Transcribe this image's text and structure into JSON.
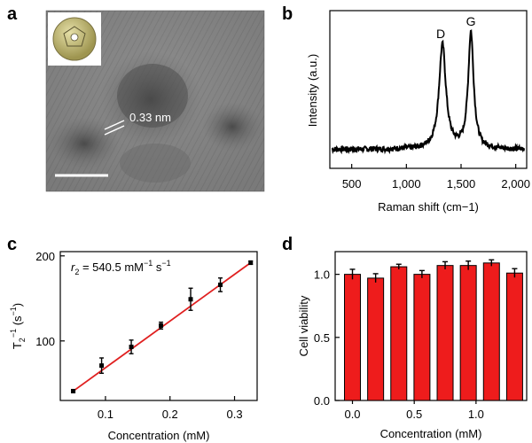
{
  "panel_labels": [
    "a",
    "b",
    "c",
    "d"
  ],
  "chart_data": [
    {
      "panel": "a",
      "type": "image",
      "annotation": "0.33 nm"
    },
    {
      "panel": "b",
      "type": "line",
      "xlabel": "Raman shift (cm−1)",
      "ylabel": "Intensity (a.u.)",
      "xlim": [
        300,
        2100
      ],
      "xticks": [
        500,
        1000,
        1500,
        2000
      ],
      "xtick_labels": [
        "500",
        "1,000",
        "1,500",
        "2,000"
      ],
      "peaks": [
        {
          "label": "D",
          "x": 1330,
          "height": 0.78
        },
        {
          "label": "G",
          "x": 1590,
          "height": 0.86
        }
      ],
      "baseline": 0.12
    },
    {
      "panel": "c",
      "type": "scatter",
      "xlabel": "Concentration (mM)",
      "ylabel_main": "T",
      "ylabel_sup": "−1",
      "ylabel_sub": "2",
      "ylabel_unit": " (s",
      "ylabel_unit_sup": "−1",
      "ylabel_close": ")",
      "annotation_var": "r",
      "annotation_sub": "2",
      "annotation_text": " = 540.5 mM",
      "annotation_sup1": "−1",
      "annotation_text2": " s",
      "annotation_sup2": "−1",
      "xlim": [
        0.03,
        0.335
      ],
      "ylim": [
        30,
        205
      ],
      "xticks": [
        0.1,
        0.2,
        0.3
      ],
      "xtick_labels": [
        "0.1",
        "0.2",
        "0.3"
      ],
      "yticks": [
        100,
        200
      ],
      "ytick_labels": [
        "100",
        "200"
      ],
      "x": [
        0.05,
        0.094,
        0.14,
        0.186,
        0.232,
        0.278,
        0.325
      ],
      "y": [
        41,
        71,
        93,
        118,
        149,
        166,
        192
      ],
      "yerr": [
        1.5,
        9,
        8,
        4,
        13,
        8,
        2
      ],
      "fit": {
        "x": [
          0.05,
          0.325
        ],
        "y": [
          41,
          192
        ]
      }
    },
    {
      "panel": "d",
      "type": "bar",
      "xlabel": "Concentration (mM)",
      "ylabel": "Cell viability",
      "ylim": [
        0,
        1.18
      ],
      "xlim": [
        -0.14,
        1.41
      ],
      "yticks": [
        0.0,
        0.5,
        1.0
      ],
      "ytick_labels": [
        "0.0",
        "0.5",
        "1.0"
      ],
      "xticks": [
        0.0,
        0.5,
        1.0
      ],
      "xtick_labels": [
        "0.0",
        "0.5",
        "1.0"
      ],
      "x": [
        0.0,
        0.1875,
        0.375,
        0.5625,
        0.75,
        0.9375,
        1.125,
        1.3125
      ],
      "values": [
        1.0,
        0.97,
        1.06,
        1.0,
        1.07,
        1.07,
        1.09,
        1.01
      ],
      "errors": [
        0.04,
        0.035,
        0.02,
        0.03,
        0.03,
        0.035,
        0.025,
        0.035
      ],
      "bar_color": "#ee1c1c"
    }
  ]
}
